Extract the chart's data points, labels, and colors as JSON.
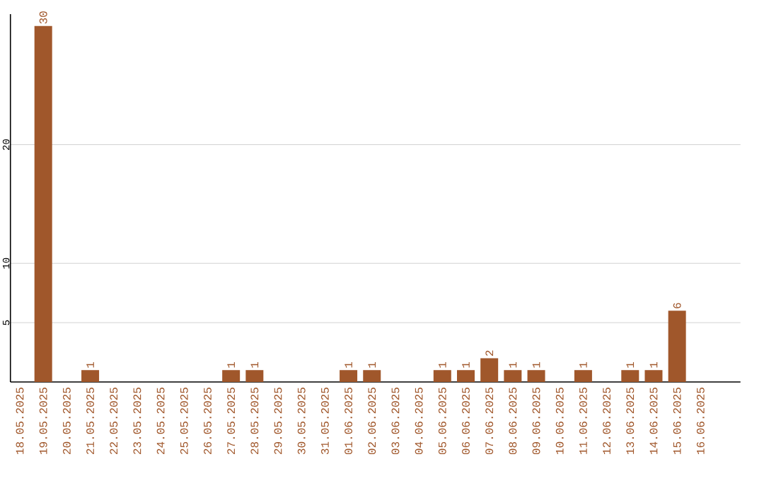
{
  "chart_data": {
    "type": "bar",
    "categories": [
      "18.05.2025",
      "19.05.2025",
      "20.05.2025",
      "21.05.2025",
      "22.05.2025",
      "23.05.2025",
      "24.05.2025",
      "25.05.2025",
      "26.05.2025",
      "27.05.2025",
      "28.05.2025",
      "29.05.2025",
      "30.05.2025",
      "31.05.2025",
      "01.06.2025",
      "02.06.2025",
      "03.06.2025",
      "04.06.2025",
      "05.06.2025",
      "06.06.2025",
      "07.06.2025",
      "08.06.2025",
      "09.06.2025",
      "10.06.2025",
      "11.06.2025",
      "12.06.2025",
      "13.06.2025",
      "14.06.2025",
      "15.06.2025",
      "16.06.2025"
    ],
    "values": [
      0,
      30,
      0,
      1,
      0,
      0,
      0,
      0,
      0,
      1,
      1,
      0,
      0,
      0,
      1,
      1,
      0,
      0,
      1,
      1,
      2,
      1,
      1,
      0,
      1,
      0,
      1,
      1,
      6,
      0
    ],
    "value_labels": [
      null,
      "30",
      null,
      "1",
      null,
      null,
      null,
      null,
      null,
      "1",
      "1",
      null,
      null,
      null,
      "1",
      "1",
      null,
      null,
      "1",
      "1",
      "2",
      "1",
      "1",
      null,
      "1",
      null,
      "1",
      "1",
      "6",
      null
    ],
    "color": "#a0572b",
    "ylim": [
      0,
      31
    ],
    "yticks": [
      5,
      10,
      20
    ],
    "grid": "y"
  }
}
